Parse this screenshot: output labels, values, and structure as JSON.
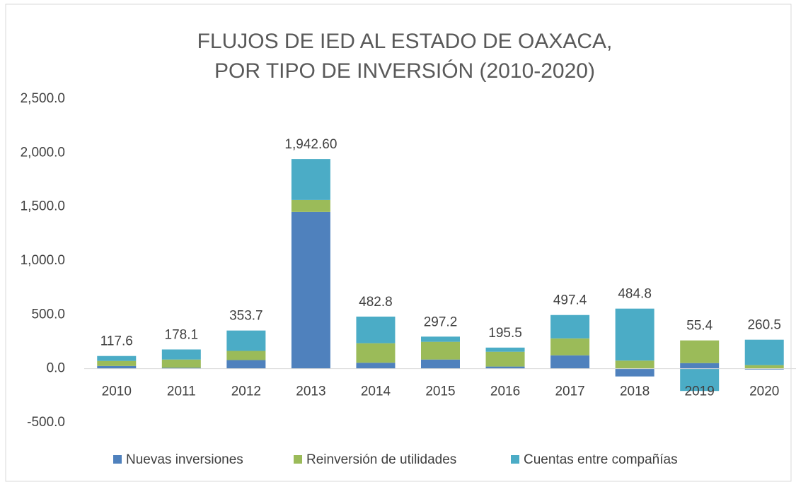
{
  "chart_data": {
    "type": "stacked_bar",
    "title": [
      "FLUJOS DE IED  AL ESTADO DE OAXACA,",
      "POR TIPO DE INVERSIÓN (2010-2020)"
    ],
    "categories": [
      "2010",
      "2011",
      "2012",
      "2013",
      "2014",
      "2015",
      "2016",
      "2017",
      "2018",
      "2019",
      "2020"
    ],
    "series": [
      {
        "name": "Nuevas inversiones",
        "color": "#4f81bd",
        "values": [
          25,
          8,
          80,
          1453,
          55,
          85,
          20,
          124,
          -72,
          52,
          -8
        ]
      },
      {
        "name": "Reinversión de utilidades",
        "color": "#9bbb59",
        "values": [
          47,
          77,
          85,
          111,
          181,
          164,
          137,
          157,
          75,
          210,
          33
        ]
      },
      {
        "name": "Cuentas entre compañías",
        "color": "#4bacc6",
        "values": [
          45.6,
          93.1,
          188.7,
          378.6,
          246.8,
          48.2,
          38.5,
          216.4,
          481.8,
          -206.6,
          235.5
        ]
      }
    ],
    "totals": [
      117.6,
      178.1,
      353.7,
      1942.6,
      482.8,
      297.2,
      195.5,
      497.4,
      484.8,
      55.4,
      260.5
    ],
    "totals_labels": [
      "117.6",
      "178.1",
      "353.7",
      "1,942.60",
      "482.8",
      "297.2",
      "195.5",
      "497.4",
      "484.8",
      "55.4",
      "260.5"
    ],
    "ylim": [
      -500,
      2500
    ],
    "yticks": [
      {
        "value": -500,
        "label": "-500.0"
      },
      {
        "value": 0,
        "label": "0.0"
      },
      {
        "value": 500,
        "label": "500.0"
      },
      {
        "value": 1000,
        "label": "1,000.0"
      },
      {
        "value": 1500,
        "label": "1,500.0"
      },
      {
        "value": 2000,
        "label": "2,000.0"
      },
      {
        "value": 2500,
        "label": "2,500.0"
      }
    ],
    "grid": false,
    "legend": "bottom"
  }
}
